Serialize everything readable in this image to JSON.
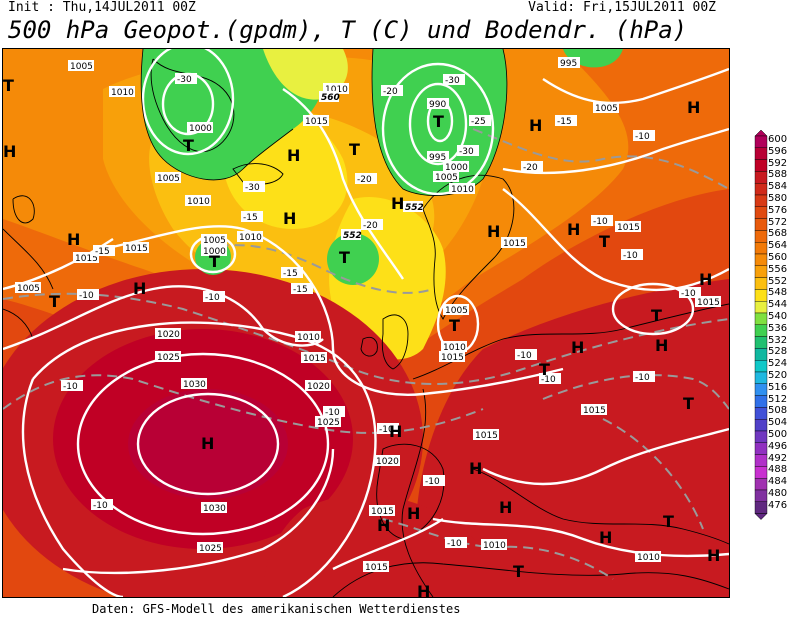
{
  "header": {
    "init": "Init : Thu,14JUL2011 00Z",
    "valid": "Valid: Fri,15JUL2011 00Z",
    "title": "500 hPa Geopot.(gpdm), T (C) und Bodendr. (hPa)"
  },
  "footer": "Daten: GFS-Modell des amerikanischen Wetterdienstes",
  "legend": {
    "values": [
      "600",
      "596",
      "592",
      "588",
      "584",
      "580",
      "576",
      "572",
      "568",
      "564",
      "560",
      "556",
      "552",
      "548",
      "544",
      "540",
      "536",
      "532",
      "528",
      "524",
      "520",
      "516",
      "512",
      "508",
      "504",
      "500",
      "496",
      "492",
      "488",
      "484",
      "480",
      "476"
    ],
    "colors": [
      "#b0005a",
      "#b80035",
      "#c00025",
      "#c81a20",
      "#d02a1a",
      "#d83a15",
      "#e04a10",
      "#e85a0c",
      "#ee6a0a",
      "#f27a08",
      "#f58a08",
      "#f8a00a",
      "#fbbf10",
      "#fde018",
      "#e8f040",
      "#80e040",
      "#40d050",
      "#20c070",
      "#10b8a0",
      "#10c8c8",
      "#20b8e0",
      "#3090f0",
      "#3070e8",
      "#4050d8",
      "#5040c8",
      "#7038c0",
      "#9030c0",
      "#b030c8",
      "#c830d0",
      "#a030b0",
      "#8030a0",
      "#602880"
    ]
  },
  "pressure_labels": [
    {
      "t": "1005"
    },
    {
      "t": "1010"
    },
    {
      "t": "1015"
    },
    {
      "t": "1020"
    },
    {
      "t": "1025"
    },
    {
      "t": "1030"
    },
    {
      "t": "1000"
    },
    {
      "t": "995"
    },
    {
      "t": "990"
    }
  ],
  "temp_labels": [
    "-10",
    "-15",
    "-20",
    "-25",
    "-30"
  ],
  "geopot_labels": [
    "552",
    "560"
  ],
  "centers": {
    "high": "H",
    "low": "T"
  }
}
